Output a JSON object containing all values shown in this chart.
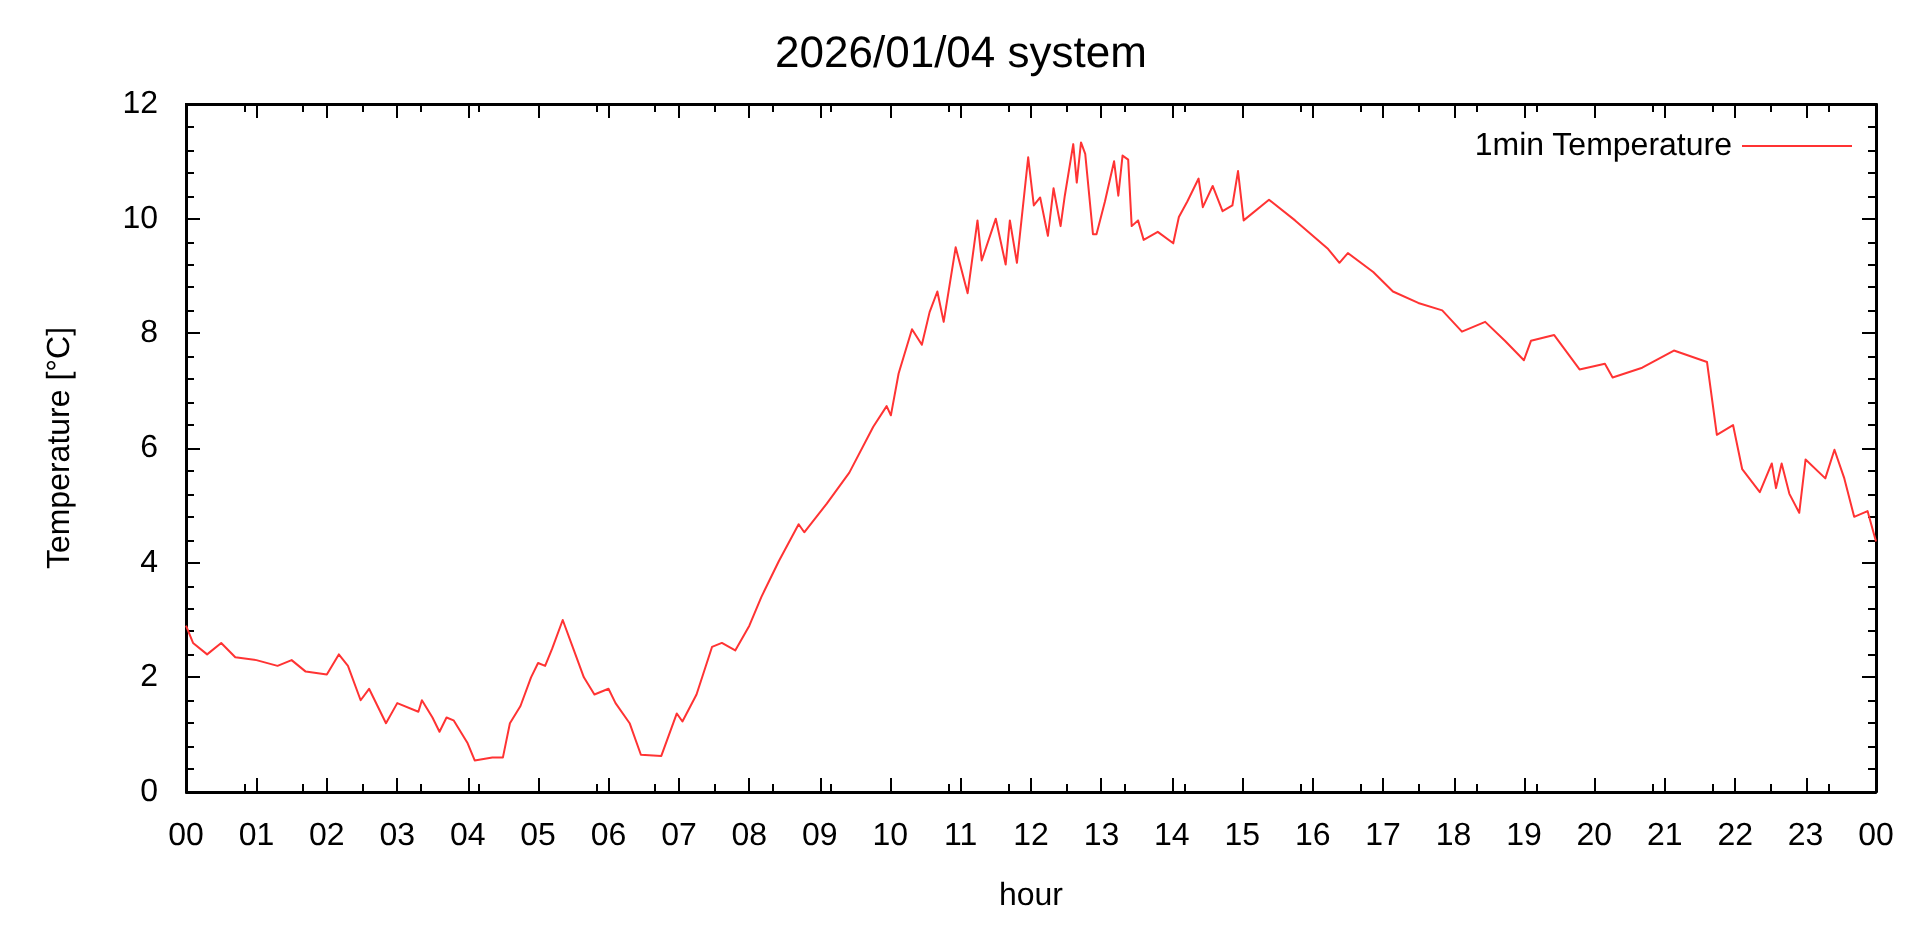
{
  "chart_data": {
    "type": "line",
    "title": "2026/01/04 system",
    "xlabel": "hour",
    "ylabel": "Temperature [°C]",
    "xlim": [
      0,
      24
    ],
    "ylim": [
      0,
      12
    ],
    "xticks": [
      {
        "value": 0,
        "label": "00"
      },
      {
        "value": 1,
        "label": "01"
      },
      {
        "value": 2,
        "label": "02"
      },
      {
        "value": 3,
        "label": "03"
      },
      {
        "value": 4,
        "label": "04"
      },
      {
        "value": 5,
        "label": "05"
      },
      {
        "value": 6,
        "label": "06"
      },
      {
        "value": 7,
        "label": "07"
      },
      {
        "value": 8,
        "label": "08"
      },
      {
        "value": 9,
        "label": "09"
      },
      {
        "value": 10,
        "label": "10"
      },
      {
        "value": 11,
        "label": "11"
      },
      {
        "value": 12,
        "label": "12"
      },
      {
        "value": 13,
        "label": "13"
      },
      {
        "value": 14,
        "label": "14"
      },
      {
        "value": 15,
        "label": "15"
      },
      {
        "value": 16,
        "label": "16"
      },
      {
        "value": 17,
        "label": "17"
      },
      {
        "value": 18,
        "label": "18"
      },
      {
        "value": 19,
        "label": "19"
      },
      {
        "value": 20,
        "label": "20"
      },
      {
        "value": 21,
        "label": "21"
      },
      {
        "value": 22,
        "label": "22"
      },
      {
        "value": 23,
        "label": "23"
      },
      {
        "value": 24,
        "label": "00"
      }
    ],
    "yticks": [
      0,
      2,
      4,
      6,
      8,
      10,
      12
    ],
    "grid": false,
    "legend": "top right",
    "marker": "none",
    "line_style": "solid",
    "series": [
      {
        "name": "1min Temperature",
        "color": "#ff3333",
        "x": [
          0,
          0.1,
          0.3,
          0.5,
          0.7,
          1.0,
          1.3,
          1.5,
          1.7,
          2.0,
          2.17,
          2.3,
          2.48,
          2.6,
          2.84,
          3.0,
          3.3,
          3.35,
          3.5,
          3.6,
          3.7,
          3.8,
          4.0,
          4.1,
          4.35,
          4.5,
          4.6,
          4.75,
          4.9,
          5.0,
          5.1,
          5.2,
          5.35,
          5.5,
          5.65,
          5.8,
          6.0,
          6.1,
          6.3,
          6.46,
          6.75,
          6.97,
          7.05,
          7.25,
          7.47,
          7.61,
          7.8,
          8.0,
          8.17,
          8.42,
          8.7,
          8.78,
          9.1,
          9.42,
          9.76,
          9.95,
          10.01,
          10.12,
          10.31,
          10.45,
          10.56,
          10.67,
          10.76,
          10.93,
          11.1,
          11.24,
          11.3,
          11.5,
          11.64,
          11.7,
          11.8,
          11.96,
          12.04,
          12.13,
          12.24,
          12.32,
          12.42,
          12.48,
          12.6,
          12.65,
          12.71,
          12.77,
          12.88,
          12.93,
          13.05,
          13.18,
          13.24,
          13.3,
          13.38,
          13.43,
          13.52,
          13.6,
          13.8,
          14.02,
          14.1,
          14.22,
          14.38,
          14.44,
          14.58,
          14.72,
          14.86,
          14.94,
          15.02,
          15.38,
          15.75,
          16.22,
          16.38,
          16.5,
          16.86,
          17.14,
          17.5,
          17.84,
          18.12,
          18.45,
          18.73,
          19.0,
          19.1,
          19.43,
          19.79,
          20.15,
          20.26,
          20.68,
          21.13,
          21.6,
          21.74,
          21.97,
          22.1,
          22.35,
          22.52,
          22.58,
          22.66,
          22.77,
          22.91,
          23.0,
          23.28,
          23.41,
          23.55,
          23.69,
          23.88,
          24.0
        ],
        "values": [
          2.9,
          2.6,
          2.4,
          2.6,
          2.35,
          2.3,
          2.2,
          2.3,
          2.1,
          2.05,
          2.4,
          2.2,
          1.6,
          1.8,
          1.2,
          1.55,
          1.4,
          1.6,
          1.3,
          1.05,
          1.3,
          1.25,
          0.85,
          0.55,
          0.6,
          0.6,
          1.2,
          1.5,
          2.0,
          2.25,
          2.2,
          2.5,
          3.0,
          2.5,
          2.0,
          1.7,
          1.8,
          1.55,
          1.2,
          0.65,
          0.63,
          1.37,
          1.23,
          1.7,
          2.53,
          2.6,
          2.47,
          2.9,
          3.4,
          4.03,
          4.67,
          4.53,
          5.03,
          5.57,
          6.37,
          6.73,
          6.57,
          7.3,
          8.07,
          7.8,
          8.37,
          8.73,
          8.2,
          9.5,
          8.7,
          9.97,
          9.27,
          10.0,
          9.2,
          9.97,
          9.23,
          11.07,
          10.23,
          10.37,
          9.7,
          10.53,
          9.87,
          10.4,
          11.3,
          10.63,
          11.33,
          11.13,
          9.73,
          9.73,
          10.3,
          11.0,
          10.4,
          11.1,
          11.03,
          9.87,
          9.97,
          9.63,
          9.77,
          9.57,
          10.03,
          10.3,
          10.7,
          10.2,
          10.57,
          10.13,
          10.23,
          10.83,
          9.97,
          10.33,
          9.97,
          9.47,
          9.23,
          9.4,
          9.07,
          8.73,
          8.53,
          8.4,
          8.03,
          8.2,
          7.87,
          7.53,
          7.87,
          7.97,
          7.37,
          7.47,
          7.23,
          7.4,
          7.7,
          7.5,
          6.23,
          6.4,
          5.63,
          5.23,
          5.73,
          5.3,
          5.73,
          5.2,
          4.87,
          5.8,
          5.47,
          5.97,
          5.47,
          4.8,
          4.9,
          4.37
        ]
      }
    ]
  }
}
